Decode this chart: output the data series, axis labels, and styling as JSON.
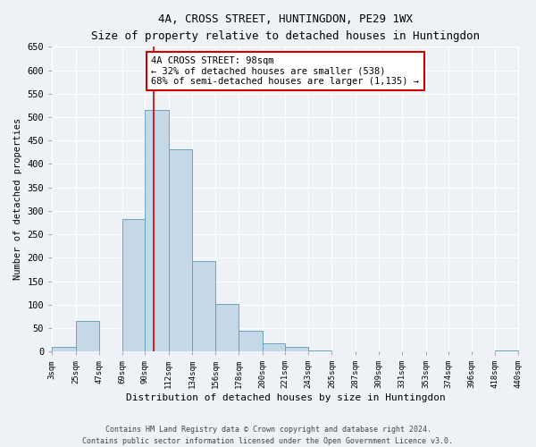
{
  "title": "4A, CROSS STREET, HUNTINGDON, PE29 1WX",
  "subtitle": "Size of property relative to detached houses in Huntingdon",
  "xlabel": "Distribution of detached houses by size in Huntingdon",
  "ylabel": "Number of detached properties",
  "footnote1": "Contains HM Land Registry data © Crown copyright and database right 2024.",
  "footnote2": "Contains public sector information licensed under the Open Government Licence v3.0.",
  "bin_labels": [
    "3sqm",
    "25sqm",
    "47sqm",
    "69sqm",
    "90sqm",
    "112sqm",
    "134sqm",
    "156sqm",
    "178sqm",
    "200sqm",
    "221sqm",
    "243sqm",
    "265sqm",
    "287sqm",
    "309sqm",
    "331sqm",
    "353sqm",
    "374sqm",
    "396sqm",
    "418sqm",
    "440sqm"
  ],
  "bar_values": [
    10,
    65,
    0,
    283,
    515,
    432,
    192,
    102,
    45,
    18,
    10,
    3,
    0,
    0,
    0,
    0,
    0,
    0,
    0,
    2,
    0
  ],
  "bar_color": "#c5d8e8",
  "bar_edge_color": "#5a9ab5",
  "bar_edge_width": 0.6,
  "ylim": [
    0,
    650
  ],
  "yticks": [
    0,
    50,
    100,
    150,
    200,
    250,
    300,
    350,
    400,
    450,
    500,
    550,
    600,
    650
  ],
  "property_line_x": 98,
  "property_line_color": "#cc0000",
  "annotation_text": "4A CROSS STREET: 98sqm\n← 32% of detached houses are smaller (538)\n68% of semi-detached houses are larger (1,135) →",
  "annotation_box_color": "#ffffff",
  "annotation_border_color": "#cc0000",
  "bg_color": "#eef2f7",
  "grid_color": "#ffffff",
  "bin_edges": [
    3,
    25,
    47,
    69,
    90,
    112,
    134,
    156,
    178,
    200,
    221,
    243,
    265,
    287,
    309,
    331,
    353,
    374,
    396,
    418,
    440
  ]
}
